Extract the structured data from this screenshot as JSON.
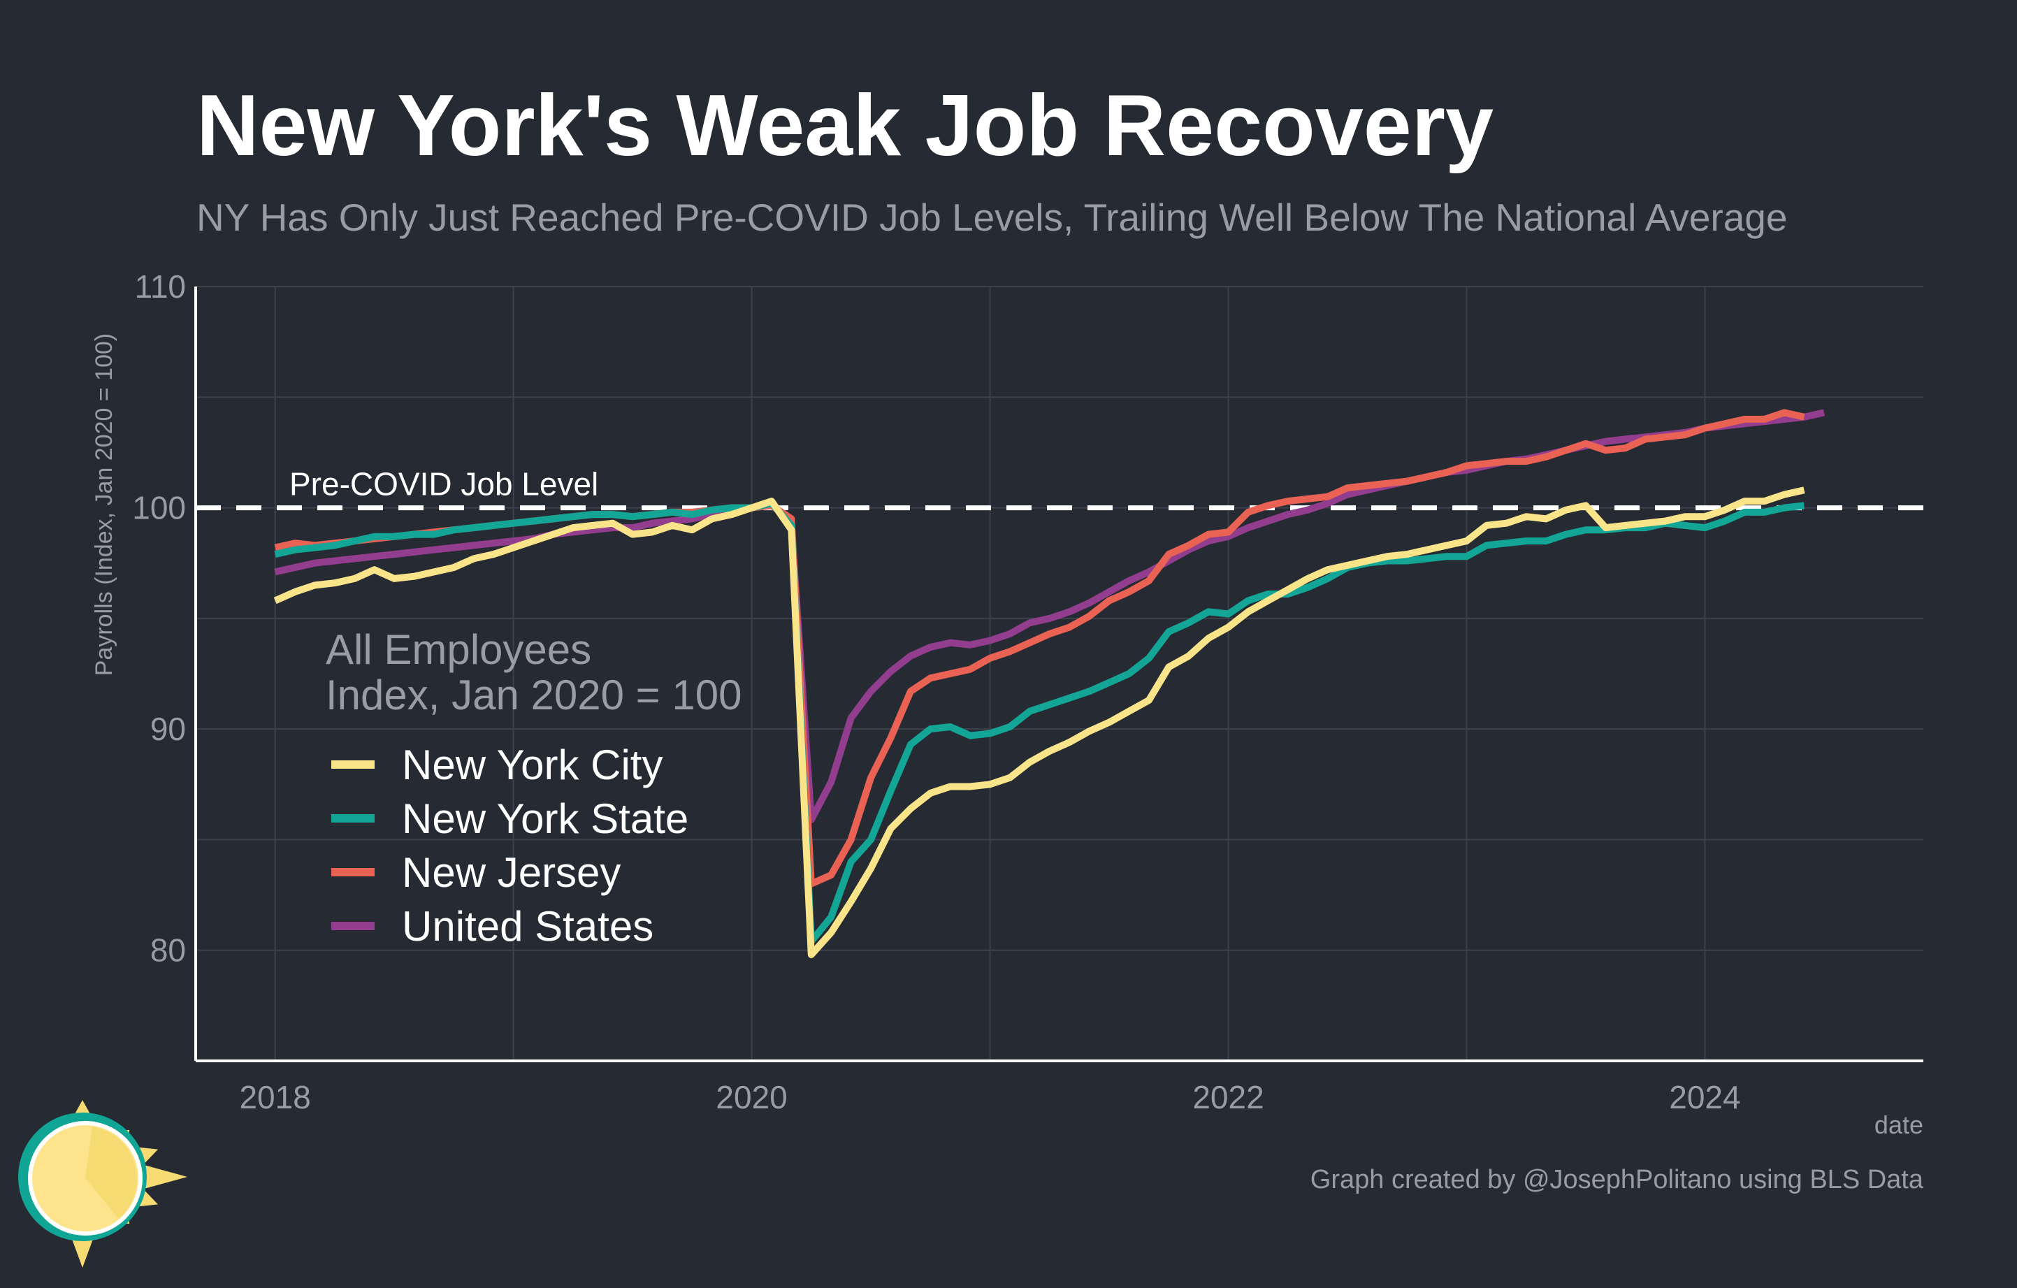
{
  "colors": {
    "background": "#252a33",
    "grid": "#3c414b",
    "axis": "#ffffff",
    "reference_line": "#ffffff",
    "logo_ring": "#10a595",
    "logo_sun": "#fde38c",
    "logo_rays": "#f6da72"
  },
  "logo": {
    "icon": "sun-logo-icon"
  },
  "chart_data": {
    "type": "line",
    "title": "New York's Weak Job Recovery",
    "subtitle": "NY Has Only Just Reached Pre-COVID Job Levels, Trailing Well Below The National Average",
    "xlabel": "date",
    "ylabel": "Payrolls (Index, Jan 2020 = 100)",
    "caption": "Graph created by @JosephPolitano using BLS Data",
    "x_ticks": [
      "2018",
      "2020",
      "2022",
      "2024"
    ],
    "y_ticks": [
      "80",
      "90",
      "100",
      "110"
    ],
    "xlim": [
      "2017-09",
      "2024-12"
    ],
    "ylim": [
      75,
      110
    ],
    "grid": true,
    "reference_line": {
      "y": 100,
      "label": "Pre-COVID Job Level",
      "style": "dashed"
    },
    "legend": {
      "placement": "inside-left",
      "title_lines": [
        "All Employees",
        "Index, Jan 2020 = 100"
      ]
    },
    "series": [
      {
        "name": "New York City",
        "color": "#f9e48a",
        "start": "2018-01",
        "values": [
          95.8,
          96.2,
          96.5,
          96.6,
          96.8,
          97.2,
          96.8,
          96.9,
          97.1,
          97.3,
          97.7,
          97.9,
          98.2,
          98.5,
          98.8,
          99.1,
          99.2,
          99.3,
          98.8,
          98.9,
          99.2,
          99.0,
          99.5,
          99.7,
          100.0,
          100.3,
          99.0,
          79.8,
          80.8,
          82.2,
          83.7,
          85.5,
          86.4,
          87.1,
          87.4,
          87.4,
          87.5,
          87.8,
          88.5,
          89.0,
          89.4,
          89.9,
          90.3,
          90.8,
          91.3,
          92.8,
          93.3,
          94.1,
          94.6,
          95.3,
          95.8,
          96.3,
          96.8,
          97.2,
          97.4,
          97.6,
          97.8,
          97.9,
          98.1,
          98.3,
          98.5,
          99.2,
          99.3,
          99.6,
          99.5,
          99.9,
          100.1,
          99.1,
          99.2,
          99.3,
          99.4,
          99.6,
          99.6,
          99.9,
          100.3,
          100.3,
          100.6,
          100.8
        ]
      },
      {
        "name": "New York State",
        "color": "#13a696",
        "start": "2018-01",
        "values": [
          97.9,
          98.1,
          98.2,
          98.3,
          98.5,
          98.7,
          98.7,
          98.8,
          98.8,
          99.0,
          99.1,
          99.2,
          99.3,
          99.4,
          99.5,
          99.6,
          99.7,
          99.7,
          99.6,
          99.7,
          99.8,
          99.7,
          99.9,
          100.0,
          100.0,
          100.2,
          99.2,
          80.4,
          81.5,
          84.0,
          85.0,
          87.2,
          89.3,
          90.0,
          90.1,
          89.7,
          89.8,
          90.1,
          90.8,
          91.1,
          91.4,
          91.7,
          92.1,
          92.5,
          93.2,
          94.4,
          94.8,
          95.3,
          95.2,
          95.8,
          96.1,
          96.1,
          96.4,
          96.8,
          97.3,
          97.5,
          97.6,
          97.6,
          97.7,
          97.8,
          97.8,
          98.3,
          98.4,
          98.5,
          98.5,
          98.8,
          99.0,
          99.0,
          99.1,
          99.1,
          99.3,
          99.2,
          99.1,
          99.4,
          99.8,
          99.8,
          100.0,
          100.1
        ]
      },
      {
        "name": "New Jersey",
        "color": "#ea6254",
        "start": "2018-01",
        "values": [
          98.2,
          98.4,
          98.3,
          98.4,
          98.5,
          98.6,
          98.7,
          98.8,
          98.9,
          99.0,
          99.1,
          99.2,
          99.3,
          99.4,
          99.5,
          99.6,
          99.7,
          99.7,
          99.6,
          99.7,
          99.8,
          99.8,
          99.9,
          100.0,
          100.0,
          100.1,
          99.5,
          83.0,
          83.4,
          85.0,
          87.8,
          89.6,
          91.7,
          92.3,
          92.5,
          92.7,
          93.2,
          93.5,
          93.9,
          94.3,
          94.6,
          95.1,
          95.8,
          96.2,
          96.7,
          97.9,
          98.3,
          98.8,
          98.9,
          99.8,
          100.1,
          100.3,
          100.4,
          100.5,
          100.9,
          101.0,
          101.1,
          101.2,
          101.4,
          101.6,
          101.9,
          102.0,
          102.1,
          102.1,
          102.3,
          102.6,
          102.9,
          102.6,
          102.7,
          103.1,
          103.2,
          103.3,
          103.6,
          103.8,
          104.0,
          104.0,
          104.3,
          104.1
        ]
      },
      {
        "name": "United States",
        "color": "#933d8e",
        "start": "2018-01",
        "values": [
          97.1,
          97.3,
          97.5,
          97.6,
          97.7,
          97.8,
          97.9,
          98.0,
          98.1,
          98.2,
          98.3,
          98.4,
          98.5,
          98.6,
          98.8,
          98.9,
          99.0,
          99.1,
          99.1,
          99.3,
          99.4,
          99.5,
          99.7,
          99.8,
          100.0,
          100.2,
          99.3,
          85.9,
          87.6,
          90.5,
          91.7,
          92.6,
          93.3,
          93.7,
          93.9,
          93.8,
          94.0,
          94.3,
          94.8,
          95.0,
          95.3,
          95.7,
          96.2,
          96.7,
          97.1,
          97.6,
          98.1,
          98.5,
          98.7,
          99.1,
          99.4,
          99.7,
          99.9,
          100.2,
          100.6,
          100.8,
          101.0,
          101.2,
          101.4,
          101.6,
          101.7,
          101.9,
          102.1,
          102.2,
          102.4,
          102.6,
          102.8,
          103.0,
          103.1,
          103.2,
          103.3,
          103.4,
          103.6,
          103.7,
          103.8,
          103.9,
          104.0,
          104.1,
          104.3
        ]
      }
    ]
  }
}
